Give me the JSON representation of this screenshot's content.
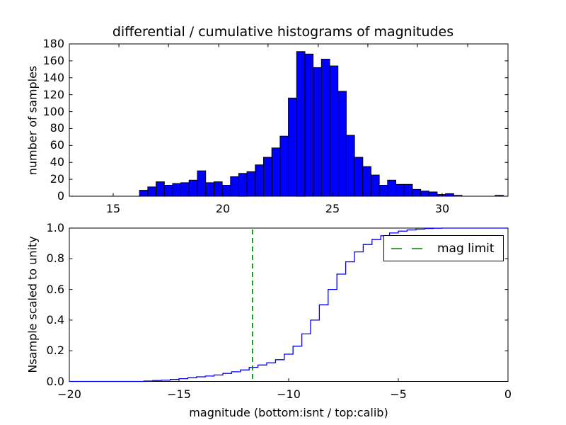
{
  "title": "differential / cumulative histograms of magnitudes",
  "colors": {
    "bar_fill_blue": "#0000ff",
    "bar_edge": "#000000",
    "curve_blue": "#0000ff",
    "mag_limit_green": "#008000",
    "axis_black": "#000000",
    "background": "#ffffff"
  },
  "top_plot": {
    "ylabel": "number of samples",
    "yticks": [
      {
        "v": 0,
        "label": "0"
      },
      {
        "v": 20,
        "label": "20"
      },
      {
        "v": 40,
        "label": "40"
      },
      {
        "v": 60,
        "label": "60"
      },
      {
        "v": 80,
        "label": "80"
      },
      {
        "v": 100,
        "label": "100"
      },
      {
        "v": 120,
        "label": "120"
      },
      {
        "v": 140,
        "label": "140"
      },
      {
        "v": 160,
        "label": "160"
      },
      {
        "v": 180,
        "label": "180"
      }
    ],
    "xticks": [
      {
        "v": 15,
        "label": "15"
      },
      {
        "v": 20,
        "label": "20"
      },
      {
        "v": 25,
        "label": "25"
      },
      {
        "v": 30,
        "label": "30"
      }
    ],
    "top_edge_tick_values": [
      15.26,
      17.52,
      19.81,
      22.06,
      24.35,
      26.61,
      28.87,
      31.16
    ]
  },
  "bottom_plot": {
    "ylabel": "Nsample scaled to unity",
    "xlabel": "magnitude (bottom:isnt / top:calib)",
    "yticks": [
      {
        "v": 0.0,
        "label": "0.0"
      },
      {
        "v": 0.2,
        "label": "0.2"
      },
      {
        "v": 0.4,
        "label": "0.4"
      },
      {
        "v": 0.6,
        "label": "0.6"
      },
      {
        "v": 0.8,
        "label": "0.8"
      },
      {
        "v": 1.0,
        "label": "1.0"
      }
    ],
    "xticks": [
      {
        "v": -20,
        "label": "−20"
      },
      {
        "v": -15,
        "label": "−15"
      },
      {
        "v": -10,
        "label": "−10"
      },
      {
        "v": -5,
        "label": "−5"
      },
      {
        "v": 0,
        "label": "0"
      }
    ],
    "top_edge_tick_values": [
      15,
      20,
      25,
      30
    ],
    "legend": {
      "label": "mag limit"
    }
  },
  "chart_data": [
    {
      "type": "bar",
      "subplot": "top",
      "title": "differential / cumulative histograms of magnitudes",
      "ylabel": "number of samples",
      "xlim": [
        13,
        33
      ],
      "ylim": [
        0,
        180
      ],
      "bin_start": 16.2,
      "bin_width": 0.377,
      "values": [
        7,
        11,
        17,
        13,
        15,
        16,
        19,
        30,
        16,
        17,
        13,
        23,
        27,
        29,
        37,
        46,
        57,
        71,
        116,
        171,
        168,
        152,
        162,
        154,
        124,
        72,
        46,
        35,
        25,
        13,
        19,
        14,
        14,
        8,
        6,
        5,
        2,
        3,
        1,
        0,
        0,
        0,
        0,
        1
      ],
      "grid": false
    },
    {
      "type": "line",
      "subplot": "bottom",
      "style": "cumulative-step",
      "ylabel": "Nsample scaled to unity",
      "xlabel": "magnitude (bottom:isnt / top:calib)",
      "xlim": [
        -20,
        0
      ],
      "ylim": [
        0,
        1
      ],
      "points": [
        [
          -16.6,
          0.003
        ],
        [
          -16.2,
          0.006
        ],
        [
          -15.8,
          0.009
        ],
        [
          -15.4,
          0.013
        ],
        [
          -15.0,
          0.018
        ],
        [
          -14.6,
          0.024
        ],
        [
          -14.2,
          0.03
        ],
        [
          -13.8,
          0.035
        ],
        [
          -13.4,
          0.042
        ],
        [
          -13.0,
          0.052
        ],
        [
          -12.6,
          0.063
        ],
        [
          -12.2,
          0.075
        ],
        [
          -11.8,
          0.092
        ],
        [
          -11.4,
          0.107
        ],
        [
          -11.0,
          0.122
        ],
        [
          -10.6,
          0.142
        ],
        [
          -10.2,
          0.178
        ],
        [
          -9.8,
          0.23
        ],
        [
          -9.4,
          0.31
        ],
        [
          -9.0,
          0.4
        ],
        [
          -8.6,
          0.5
        ],
        [
          -8.2,
          0.6
        ],
        [
          -7.8,
          0.7
        ],
        [
          -7.4,
          0.78
        ],
        [
          -7.0,
          0.845
        ],
        [
          -6.6,
          0.893
        ],
        [
          -6.2,
          0.925
        ],
        [
          -5.8,
          0.95
        ],
        [
          -5.4,
          0.968
        ],
        [
          -5.0,
          0.98
        ],
        [
          -4.6,
          0.988
        ],
        [
          -4.2,
          0.993
        ],
        [
          -3.8,
          0.997
        ],
        [
          -3.4,
          0.999
        ],
        [
          -3.0,
          1.0
        ],
        [
          0.0,
          1.0
        ]
      ],
      "vline": {
        "x": -11.65,
        "style": "dashed",
        "color": "#008000",
        "legend_label": "mag limit"
      },
      "legend_position": "upper right",
      "grid": false
    }
  ]
}
